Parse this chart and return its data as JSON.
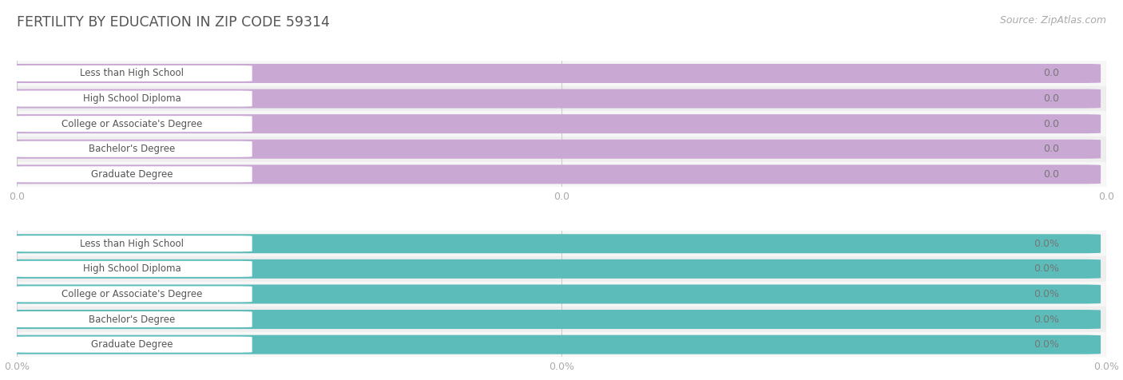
{
  "title": "FERTILITY BY EDUCATION IN ZIP CODE 59314",
  "source_text": "Source: ZipAtlas.com",
  "categories": [
    "Less than High School",
    "High School Diploma",
    "College or Associate's Degree",
    "Bachelor's Degree",
    "Graduate Degree"
  ],
  "values_top": [
    0.0,
    0.0,
    0.0,
    0.0,
    0.0
  ],
  "values_bottom": [
    0.0,
    0.0,
    0.0,
    0.0,
    0.0
  ],
  "bar_color_top": "#c9a8d4",
  "bar_color_bottom": "#5bbcba",
  "bg_color": "#ffffff",
  "row_bg_color": "#f0f0f0",
  "text_color_bar": "#666666",
  "text_color_value": "#888888",
  "title_color": "#555555",
  "source_color": "#aaaaaa",
  "tick_label_color": "#aaaaaa",
  "gridline_color": "#cccccc",
  "bar_bg_color": "#e8e8e8",
  "white_pill_color": "#ffffff",
  "ytick_labels_top": [
    "0.0",
    "0.0",
    "0.0"
  ],
  "ytick_labels_bottom": [
    "0.0%",
    "0.0%",
    "0.0%"
  ],
  "xtick_positions": [
    0.0,
    0.5,
    1.0
  ]
}
